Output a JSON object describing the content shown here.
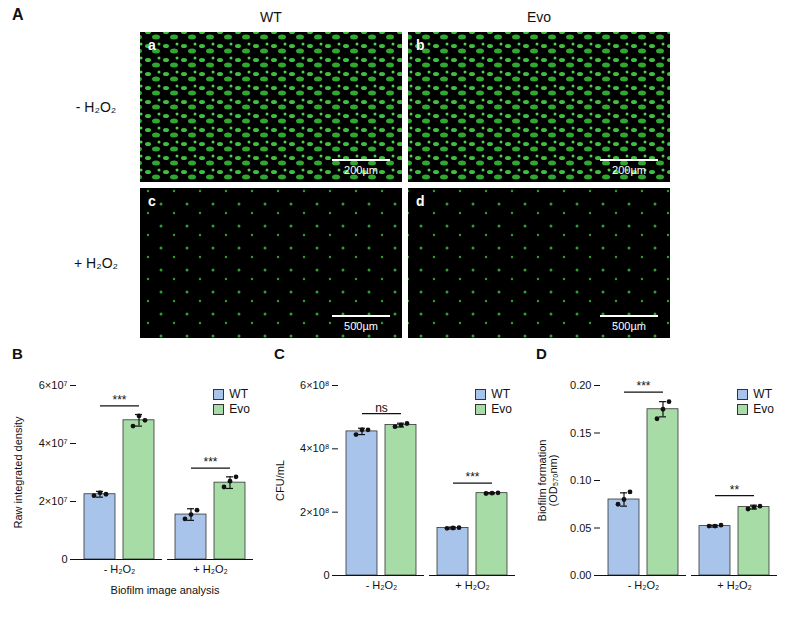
{
  "image_panel": {
    "panel": "A",
    "columns": [
      "WT",
      "Evo"
    ],
    "rows": [
      "- H₂O₂",
      "+ H₂O₂"
    ],
    "images": [
      {
        "label": "a",
        "scale_bar": "200µm"
      },
      {
        "label": "b",
        "scale_bar": "200µm"
      },
      {
        "label": "c",
        "scale_bar": "500µm"
      },
      {
        "label": "d",
        "scale_bar": "500µm"
      }
    ]
  },
  "chart_data": [
    {
      "panel": "B",
      "type": "bar",
      "y_label": "Raw integrated density",
      "x_label": "Biofilm image analysis",
      "categories": [
        "- H₂O₂",
        "+ H₂O₂"
      ],
      "series": [
        {
          "name": "WT",
          "color": "#a9c4eb",
          "values": [
            22500000,
            15500000
          ],
          "errors": [
            1000000,
            2000000
          ],
          "points": [
            [
              22000000,
              23000000,
              22500000
            ],
            [
              14000000,
              15500000,
              17000000
            ]
          ]
        },
        {
          "name": "Evo",
          "color": "#a7dca7",
          "values": [
            48000000,
            26500000
          ],
          "errors": [
            2000000,
            2000000
          ],
          "points": [
            [
              46000000,
              49500000,
              48000000
            ],
            [
              25000000,
              27000000,
              28500000
            ]
          ]
        }
      ],
      "significance": [
        "***",
        "***"
      ],
      "ylim": [
        0,
        60000000
      ],
      "yticks": [
        0,
        {
          "value": 20000000,
          "label": "2×10⁷"
        },
        {
          "value": 40000000,
          "label": "4×10⁷"
        },
        {
          "value": 60000000,
          "label": "6×10⁷"
        }
      ],
      "legend": "top-right"
    },
    {
      "panel": "C",
      "type": "bar",
      "y_label": "CFU/mL",
      "categories": [
        "- H₂O₂",
        "+ H₂O₂"
      ],
      "series": [
        {
          "name": "WT",
          "color": "#a9c4eb",
          "values": [
            455000000,
            150000000
          ],
          "errors": [
            10000000,
            3000000
          ],
          "points": [
            [
              445000000,
              460000000,
              460000000
            ],
            [
              149000000,
              150000000,
              151000000
            ]
          ]
        },
        {
          "name": "Evo",
          "color": "#a7dca7",
          "values": [
            475000000,
            260000000
          ],
          "errors": [
            6000000,
            2000000
          ],
          "points": [
            [
              470000000,
              475000000,
              480000000
            ],
            [
              259000000,
              260000000,
              261000000
            ]
          ]
        }
      ],
      "significance": [
        "ns",
        "***"
      ],
      "ylim": [
        0,
        600000000
      ],
      "yticks": [
        0,
        {
          "value": 200000000,
          "label": "2×10⁸"
        },
        {
          "value": 400000000,
          "label": "4×10⁸"
        },
        {
          "value": 600000000,
          "label": "6×10⁸"
        }
      ],
      "legend": "top-right"
    },
    {
      "panel": "D",
      "type": "bar",
      "y_label": "Biofilm formation (OD₅₇₀nm)",
      "categories": [
        "- H₂O₂",
        "+ H₂O₂"
      ],
      "series": [
        {
          "name": "WT",
          "color": "#a9c4eb",
          "values": [
            0.08,
            0.052
          ],
          "errors": [
            0.007,
            0.001
          ],
          "points": [
            [
              0.075,
              0.08,
              0.088
            ],
            [
              0.052,
              0.052,
              0.053
            ]
          ]
        },
        {
          "name": "Evo",
          "color": "#a7dca7",
          "values": [
            0.175,
            0.072
          ],
          "errors": [
            0.008,
            0.002
          ],
          "points": [
            [
              0.165,
              0.175,
              0.183
            ],
            [
              0.07,
              0.072,
              0.073
            ]
          ]
        }
      ],
      "significance": [
        "***",
        "**"
      ],
      "ylim": [
        0,
        0.2
      ],
      "yticks": [
        {
          "value": 0,
          "label": "0.00"
        },
        {
          "value": 0.05,
          "label": "0.05"
        },
        {
          "value": 0.1,
          "label": "0.10"
        },
        {
          "value": 0.15,
          "label": "0.15"
        },
        {
          "value": 0.2,
          "label": "0.20"
        }
      ],
      "legend": "top-right"
    }
  ]
}
